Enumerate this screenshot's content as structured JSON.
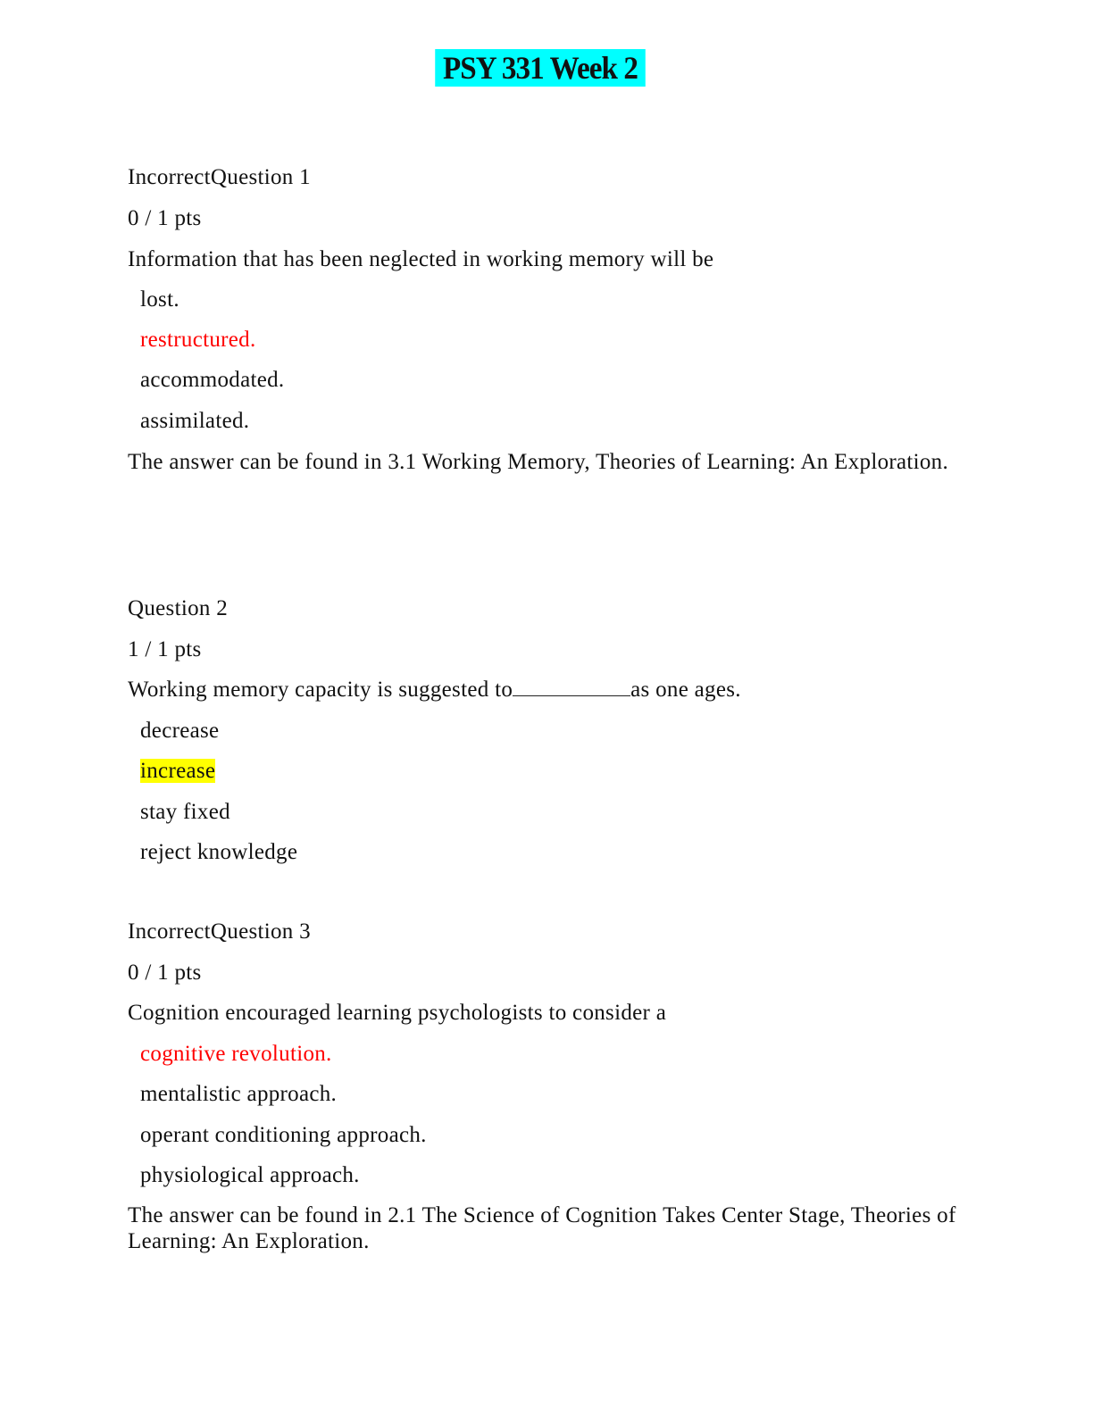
{
  "title": "PSY 331 Week 2",
  "questions": [
    {
      "header": "IncorrectQuestion 1",
      "points": "0 / 1 pts",
      "prompt": "Information that has been neglected in working memory will be",
      "options": [
        "lost.",
        "restructured.",
        "accommodated.",
        "assimilated."
      ],
      "selected_incorrect": "restructured.",
      "reference": "The answer can be found in 3.1 Working Memory, Theories of Learning: An Exploration."
    },
    {
      "header": "Question 2",
      "points": "1  / 1 pts",
      "prompt_before": "Working memory capacity is suggested to",
      "prompt_after": "as one ages.",
      "options": [
        "decrease",
        "increase",
        "stay fixed",
        "reject knowledge"
      ],
      "selected_correct": "increase"
    },
    {
      "header": "IncorrectQuestion 3",
      "points": "0 / 1 pts",
      "prompt": "Cognition encouraged learning psychologists to consider a",
      "options": [
        "cognitive revolution.",
        "mentalistic approach.",
        "operant conditioning approach.",
        "physiological approach."
      ],
      "selected_incorrect": "cognitive revolution.",
      "reference": "The answer can be found in 2.1 The Science of Cognition Takes Center Stage, Theories of Learning: An Exploration."
    }
  ],
  "colors": {
    "title_highlight": "#00ffff",
    "incorrect_answer": "#ff0000",
    "correct_highlight": "#ffff00"
  }
}
